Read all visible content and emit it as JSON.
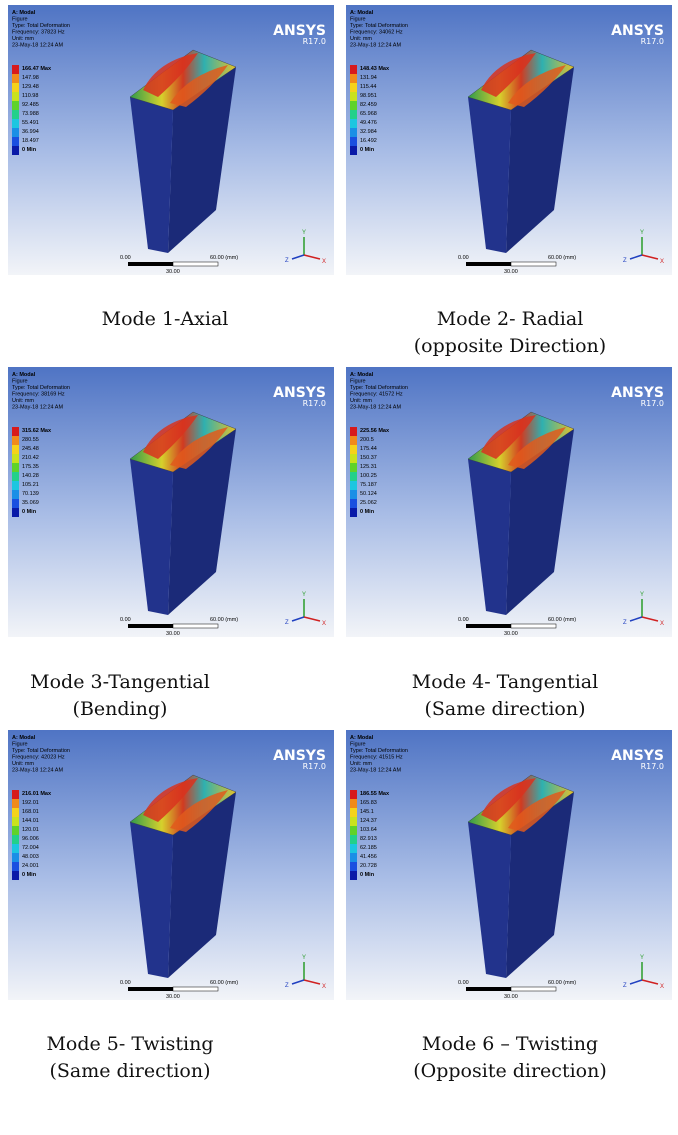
{
  "panels": [
    {
      "header": [
        "A: Modal",
        "Figure",
        "Type: Total Deformation",
        "Frequency: 37823 Hz",
        "Unit: mm",
        "23-May-18 12:24 AM"
      ],
      "legend": [
        "166.47 Max",
        "147.98",
        "129.48",
        "110.98",
        "92.485",
        "73.988",
        "55.491",
        "36.994",
        "18.497",
        "0 Min"
      ],
      "brand": "ANSYS",
      "version": "R17.0",
      "scale": [
        "0.00",
        "60.00 (mm)",
        "30.00"
      ],
      "axes": [
        "Y",
        "Z",
        "X"
      ],
      "caption": [
        "Mode 1-Axial"
      ]
    },
    {
      "header": [
        "A: Modal",
        "Figure",
        "Type: Total Deformation",
        "Frequency: 34062 Hz",
        "Unit: mm",
        "23-May-18 12:24 AM"
      ],
      "legend": [
        "148.43 Max",
        "131.94",
        "115.44",
        "98.951",
        "82.459",
        "65.968",
        "49.476",
        "32.984",
        "16.492",
        "0 Min"
      ],
      "brand": "ANSYS",
      "version": "R17.0",
      "scale": [
        "0.00",
        "60.00 (mm)",
        "30.00"
      ],
      "axes": [
        "Y",
        "Z",
        "X"
      ],
      "caption": [
        "Mode 2- Radial",
        "(opposite Direction)"
      ]
    },
    {
      "header": [
        "A: Modal",
        "Figure",
        "Type: Total Deformation",
        "Frequency: 38169 Hz",
        "Unit: mm",
        "23-May-18 12:24 AM"
      ],
      "legend": [
        "315.62 Max",
        "280.55",
        "245.48",
        "210.42",
        "175.35",
        "140.28",
        "105.21",
        "70.139",
        "35.069",
        "0 Min"
      ],
      "brand": "ANSYS",
      "version": "R17.0",
      "scale": [
        "0.00",
        "60.00 (mm)",
        "30.00"
      ],
      "axes": [
        "Y",
        "Z",
        "X"
      ],
      "caption": [
        "Mode 3-Tangential",
        "(Bending)"
      ]
    },
    {
      "header": [
        "A: Modal",
        "Figure",
        "Type: Total Deformation",
        "Frequency: 41572 Hz",
        "Unit: mm",
        "23-May-18 12:24 AM"
      ],
      "legend": [
        "225.56 Max",
        "200.5",
        "175.44",
        "150.37",
        "125.31",
        "100.25",
        "75.187",
        "50.124",
        "25.062",
        "0 Min"
      ],
      "brand": "ANSYS",
      "version": "R17.0",
      "scale": [
        "0.00",
        "60.00 (mm)",
        "30.00"
      ],
      "axes": [
        "Y",
        "Z",
        "X"
      ],
      "caption": [
        "Mode 4- Tangential",
        "(Same direction)"
      ]
    },
    {
      "header": [
        "A: Modal",
        "Figure",
        "Type: Total Deformation",
        "Frequency: 42023 Hz",
        "Unit: mm",
        "23-May-18 12:24 AM"
      ],
      "legend": [
        "216.01 Max",
        "192.01",
        "168.01",
        "144.01",
        "120.01",
        "96.006",
        "72.004",
        "48.003",
        "24.001",
        "0 Min"
      ],
      "brand": "ANSYS",
      "version": "R17.0",
      "scale": [
        "0.00",
        "60.00 (mm)",
        "30.00"
      ],
      "axes": [
        "Y",
        "Z",
        "X"
      ],
      "caption": [
        "Mode 5- Twisting",
        "(Same direction)"
      ]
    },
    {
      "header": [
        "A: Modal",
        "Figure",
        "Type: Total Deformation",
        "Frequency: 41515 Hz",
        "Unit: mm",
        "23-May-18 12:24 AM"
      ],
      "legend": [
        "186.55 Max",
        "165.83",
        "145.1",
        "124.37",
        "103.64",
        "82.913",
        "62.185",
        "41.456",
        "20.728",
        "0 Min"
      ],
      "brand": "ANSYS",
      "version": "R17.0",
      "scale": [
        "0.00",
        "60.00 (mm)",
        "30.00"
      ],
      "axes": [
        "Y",
        "Z",
        "X"
      ],
      "caption": [
        "Mode 6 – Twisting",
        "(Opposite direction)"
      ]
    }
  ]
}
